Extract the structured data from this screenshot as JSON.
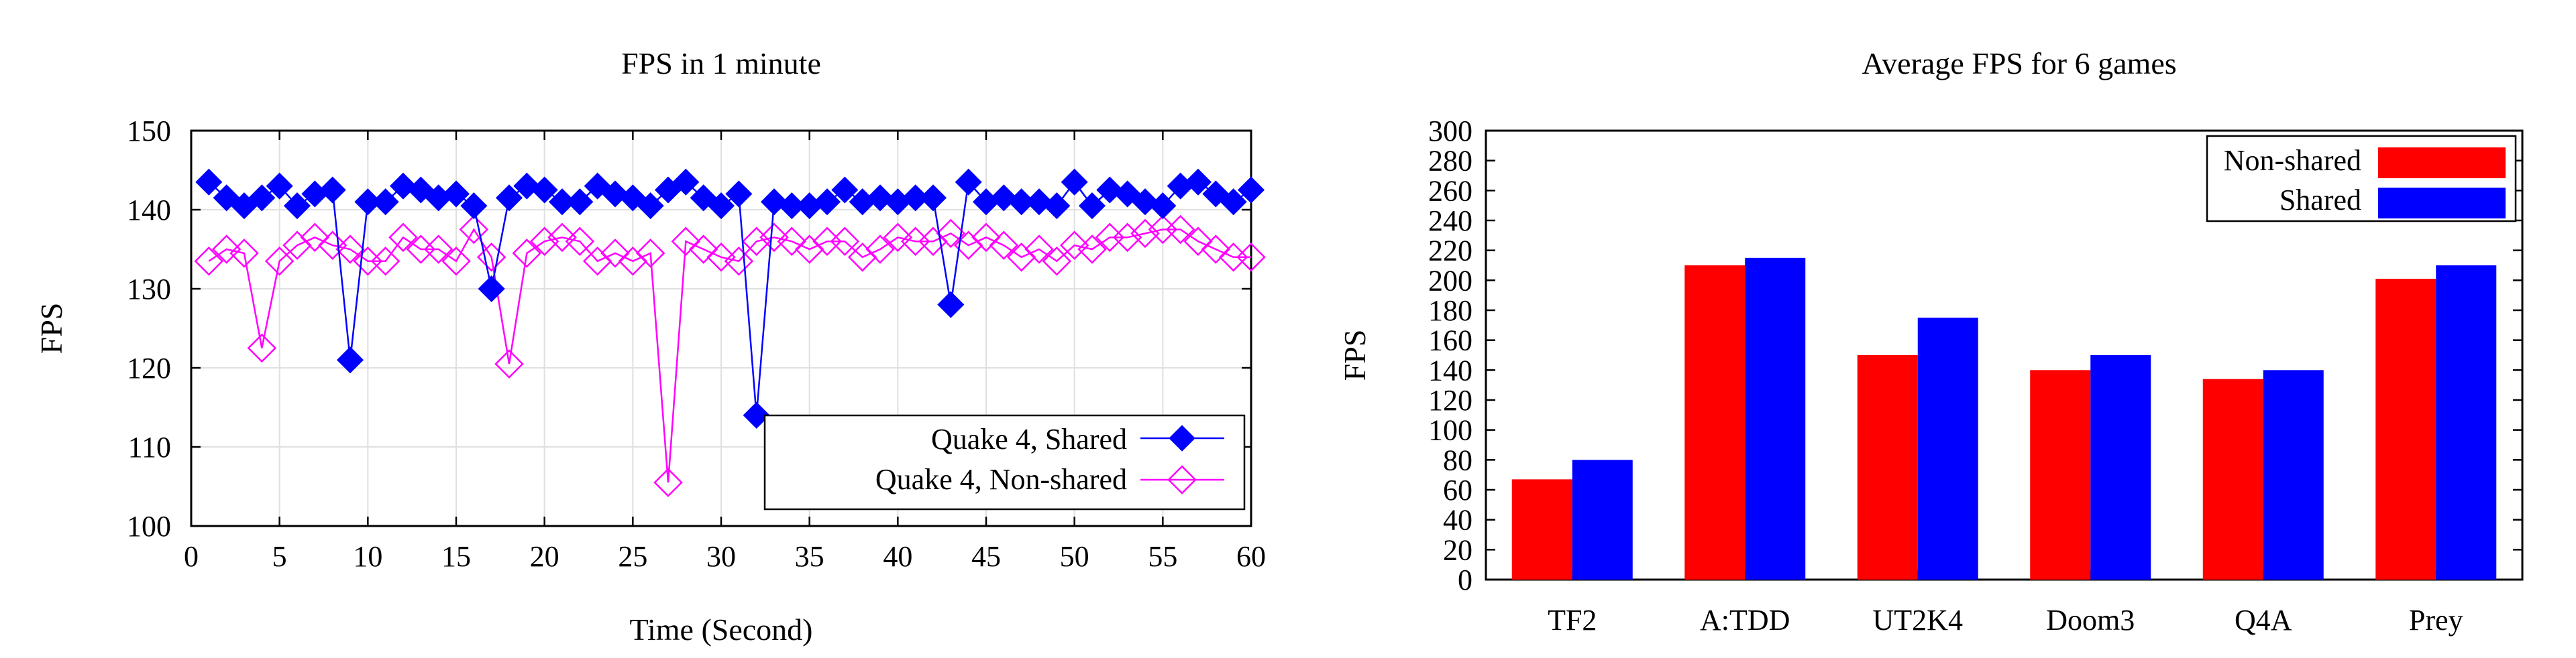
{
  "chart_data": [
    {
      "type": "line",
      "title": "FPS in 1 minute",
      "xlabel": "Time (Second)",
      "ylabel": "FPS",
      "xlim": [
        0,
        60
      ],
      "ylim": [
        100,
        150
      ],
      "xticks": [
        0,
        5,
        10,
        15,
        20,
        25,
        30,
        35,
        40,
        45,
        50,
        55,
        60
      ],
      "yticks": [
        100,
        110,
        120,
        130,
        140,
        150
      ],
      "grid": true,
      "legend_position": "bottom-right",
      "x": [
        1,
        2,
        3,
        4,
        5,
        6,
        7,
        8,
        9,
        10,
        11,
        12,
        13,
        14,
        15,
        16,
        17,
        18,
        19,
        20,
        21,
        22,
        23,
        24,
        25,
        26,
        27,
        28,
        29,
        30,
        31,
        32,
        33,
        34,
        35,
        36,
        37,
        38,
        39,
        40,
        41,
        42,
        43,
        44,
        45,
        46,
        47,
        48,
        49,
        50,
        51,
        52,
        53,
        54,
        55,
        56,
        57,
        58,
        59,
        60
      ],
      "series": [
        {
          "name": "Quake 4, Shared",
          "color": "#0000ff",
          "marker": "filled-diamond",
          "values": [
            143.5,
            141.5,
            140.5,
            141.5,
            143,
            140.5,
            142,
            142.5,
            121,
            141,
            141,
            143,
            142.5,
            141.5,
            142,
            140.5,
            130,
            141.5,
            143,
            142.5,
            141,
            141,
            143,
            142,
            141.5,
            140.5,
            142.5,
            143.5,
            141.5,
            140.5,
            142,
            114,
            141,
            140.5,
            140.5,
            141,
            142.5,
            141,
            141.5,
            141,
            141.5,
            141.5,
            128,
            143.5,
            141,
            141.5,
            141,
            141,
            140.5,
            143.5,
            140.5,
            142.5,
            142,
            141,
            140.5,
            143,
            143.5,
            142,
            141,
            142.5
          ]
        },
        {
          "name": "Quake 4, Non-shared",
          "color": "#ff00ff",
          "marker": "open-diamond",
          "values": [
            133.5,
            135,
            134.5,
            122.5,
            133.5,
            135.5,
            136.5,
            135.5,
            135,
            133.5,
            133.5,
            136.5,
            135,
            135,
            133.5,
            137.5,
            134,
            120.5,
            134.5,
            136,
            136.5,
            136,
            133.5,
            134.5,
            133.5,
            134.5,
            105.5,
            136,
            135,
            134,
            133.5,
            136,
            136.5,
            136,
            135,
            136,
            136,
            134,
            135,
            136.5,
            136,
            136,
            137,
            135.5,
            136.5,
            135.5,
            134,
            135,
            133.5,
            135.5,
            135,
            136.5,
            136.5,
            137,
            137.5,
            137.5,
            136,
            135,
            134,
            134
          ]
        }
      ]
    },
    {
      "type": "bar",
      "title": "Average FPS for 6 games",
      "xlabel": "",
      "ylabel": "FPS",
      "ylim": [
        0,
        300
      ],
      "yticks": [
        0,
        20,
        40,
        60,
        80,
        100,
        120,
        140,
        160,
        180,
        200,
        220,
        240,
        260,
        280,
        300
      ],
      "grid": false,
      "legend_position": "top-right",
      "categories": [
        "TF2",
        "A:TDD",
        "UT2K4",
        "Doom3",
        "Q4A",
        "Prey"
      ],
      "series": [
        {
          "name": "Non-shared",
          "color": "#ff0000",
          "values": [
            67,
            210,
            150,
            140,
            134,
            201
          ]
        },
        {
          "name": "Shared",
          "color": "#0000ff",
          "values": [
            80,
            215,
            175,
            150,
            140,
            210
          ]
        }
      ]
    }
  ]
}
